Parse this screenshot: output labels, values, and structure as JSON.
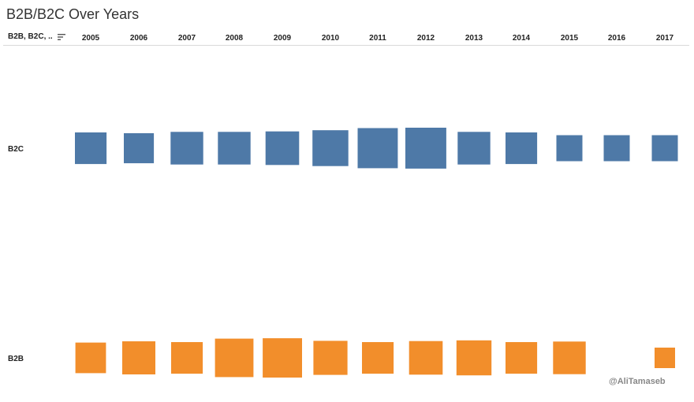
{
  "title": "B2B/B2C Over Years",
  "header": {
    "field_label": "B2B, B2C, .."
  },
  "watermark": "@AliTamaseb",
  "colors": {
    "B2C": "#4e79a7",
    "B2B": "#f28e2b"
  },
  "icons": {
    "sort": "sort-icon"
  },
  "chart_data": {
    "type": "scatter",
    "mark": "square",
    "encoding": "square area proportional to value",
    "x": [
      "2005",
      "2006",
      "2007",
      "2008",
      "2009",
      "2010",
      "2011",
      "2012",
      "2013",
      "2014",
      "2015",
      "2016",
      "2017"
    ],
    "rows": [
      "B2C",
      "B2B"
    ],
    "series": [
      {
        "name": "B2C",
        "values": [
          31,
          28,
          33,
          33,
          35,
          40,
          50,
          52,
          33,
          31,
          21,
          21,
          21
        ]
      },
      {
        "name": "B2B",
        "values": [
          29,
          34,
          31,
          46,
          48,
          36,
          31,
          35,
          38,
          31,
          33,
          null,
          13
        ]
      }
    ]
  }
}
